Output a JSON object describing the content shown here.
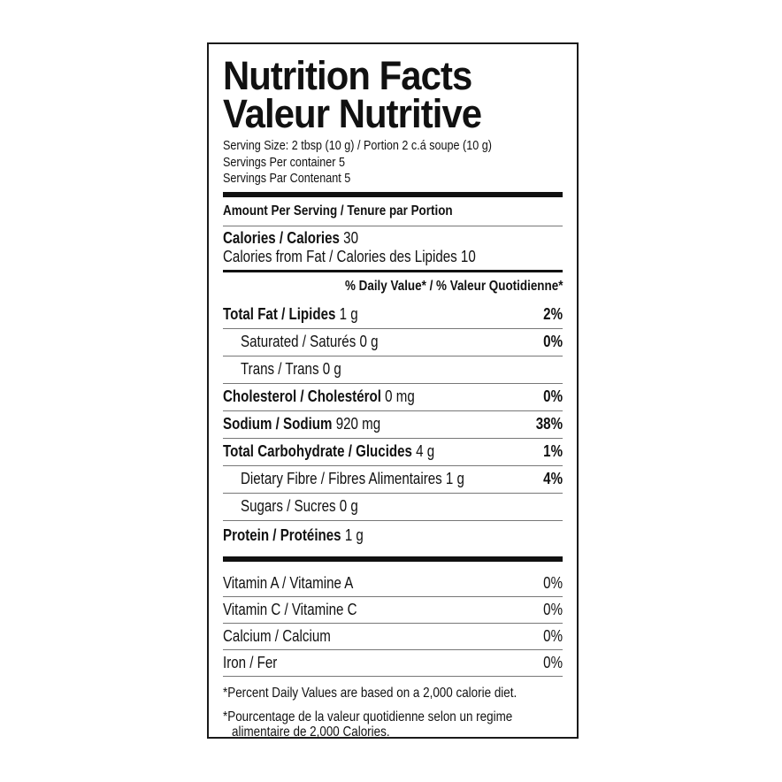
{
  "title_en": "Nutrition Facts",
  "title_fr": "Valeur Nutritive",
  "serving_size": "Serving Size: 2 tbsp (10 g) / Portion 2 c.á soupe (10 g)",
  "servings_en": "Servings Per container 5",
  "servings_fr": "Servings Par Contenant 5",
  "amount_header": "Amount Per Serving / Tenure par Portion",
  "calories_label": "Calories / Calories",
  "calories_value": "30",
  "calories_fat": "Calories from Fat / Calories des Lipides 10",
  "dv_header": "% Daily Value* / % Valeur Quotidienne*",
  "nutrients": [
    {
      "label": "Total Fat / Lipides",
      "amount": "1 g",
      "dv": "2%",
      "bold": true,
      "indent": false
    },
    {
      "label": "Saturated / Saturés",
      "amount": "0 g",
      "dv": "0%",
      "bold": false,
      "indent": true
    },
    {
      "label": "Trans / Trans",
      "amount": "0 g",
      "dv": "",
      "bold": false,
      "indent": true
    },
    {
      "label": "Cholesterol / Cholestérol",
      "amount": "0 mg",
      "dv": "0%",
      "bold": true,
      "indent": false
    },
    {
      "label": "Sodium / Sodium",
      "amount": "920 mg",
      "dv": "38%",
      "bold": true,
      "indent": false
    },
    {
      "label": "Total Carbohydrate / Glucides",
      "amount": "4 g",
      "dv": "1%",
      "bold": true,
      "indent": false
    },
    {
      "label": "Dietary Fibre / Fibres Alimentaires",
      "amount": "1 g",
      "dv": "4%",
      "bold": false,
      "indent": true
    },
    {
      "label": "Sugars / Sucres",
      "amount": "0 g",
      "dv": "",
      "bold": false,
      "indent": true
    },
    {
      "label": "Protein / Protéines",
      "amount": "1 g",
      "dv": "",
      "bold": true,
      "indent": false
    }
  ],
  "vitamins": [
    {
      "label": "Vitamin A / Vitamine A",
      "dv": "0%"
    },
    {
      "label": "Vitamin C / Vitamine C",
      "dv": "0%"
    },
    {
      "label": "Calcium / Calcium",
      "dv": "0%"
    },
    {
      "label": "Iron / Fer",
      "dv": "0%"
    }
  ],
  "footnote_en": "*Percent Daily Values are based on a 2,000 calorie diet.",
  "footnote_fr_1": "*Pourcentage de la valeur quotidienne selon un regime",
  "footnote_fr_2": "alimentaire de 2,000 Calories."
}
